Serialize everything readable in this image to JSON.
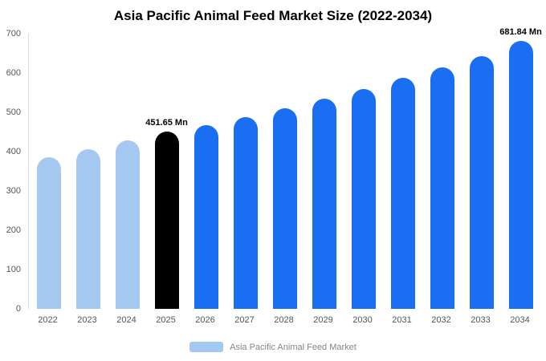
{
  "title": "Asia Pacific Animal Feed Market Size (2022-2034)",
  "legend": {
    "label": "Asia Pacific Animal Feed Market",
    "swatch_color": "#a5c8f1"
  },
  "colors": {
    "historical_bar": "#a5c8f1",
    "highlight_bar": "#000000",
    "forecast_bar": "#1a6ef2",
    "axis_text": "#555555",
    "axis_line": "#dcdcdc"
  },
  "chart_data": {
    "type": "bar",
    "title": "Asia Pacific Animal Feed Market Size (2022-2034)",
    "xlabel": "",
    "ylabel": "",
    "ylim": [
      0,
      700
    ],
    "yticks": [
      0,
      100,
      200,
      300,
      400,
      500,
      600,
      700
    ],
    "grid": false,
    "legend_position": "bottom",
    "categories": [
      "2022",
      "2023",
      "2024",
      "2025",
      "2026",
      "2027",
      "2028",
      "2029",
      "2030",
      "2031",
      "2032",
      "2033",
      "2034"
    ],
    "values": [
      385,
      407,
      428,
      451.65,
      467,
      488,
      510,
      535,
      560,
      587,
      614,
      643,
      681.84
    ],
    "bar_colors": [
      "#a5c8f1",
      "#a5c8f1",
      "#a5c8f1",
      "#000000",
      "#1a6ef2",
      "#1a6ef2",
      "#1a6ef2",
      "#1a6ef2",
      "#1a6ef2",
      "#1a6ef2",
      "#1a6ef2",
      "#1a6ef2",
      "#1a6ef2"
    ],
    "annotations": [
      {
        "category": "2025",
        "label": "451.65 Mn"
      },
      {
        "category": "2034",
        "label": "681.84 Mn"
      }
    ]
  }
}
